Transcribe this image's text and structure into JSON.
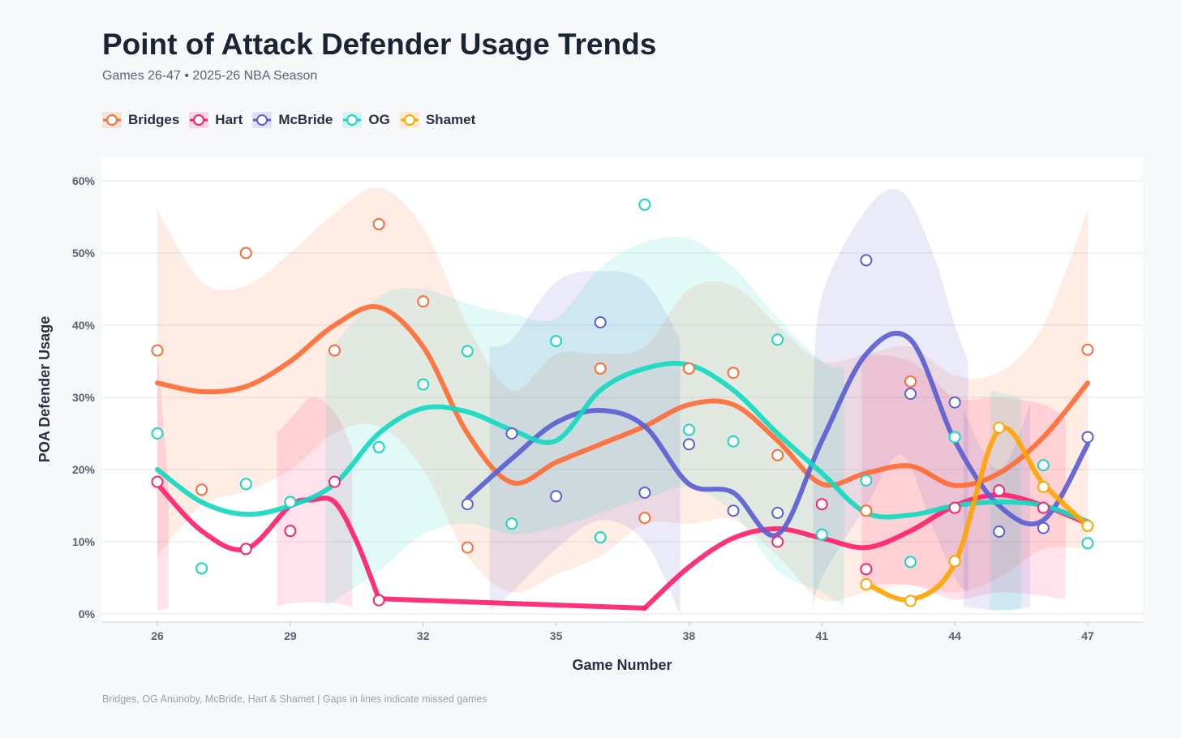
{
  "title": "Point of Attack Defender Usage Trends",
  "subtitle": "Games 26-47 • 2025-26 NBA Season",
  "caption": "Bridges, OG Anunoby, McBride, Hart & Shamet | Gaps in lines indicate missed games",
  "chart_data": {
    "type": "line",
    "title": "Point of Attack Defender Usage Trends",
    "xlabel": "Game Number",
    "ylabel": "POA Defender Usage",
    "xlim": [
      26,
      47
    ],
    "ylim": [
      0,
      60
    ],
    "x_ticks": [
      26,
      29,
      32,
      35,
      38,
      41,
      44,
      47
    ],
    "x_tick_labels": [
      "26",
      "29",
      "32",
      "35",
      "38",
      "41",
      "44",
      "47"
    ],
    "y_ticks": [
      0,
      10,
      20,
      30,
      40,
      50,
      60
    ],
    "y_tick_labels": [
      "0%",
      "10%",
      "20%",
      "30%",
      "40%",
      "50%",
      "60%"
    ],
    "grid": true,
    "legend_position": "top-left",
    "series": [
      {
        "name": "Bridges",
        "color": "#ff6b35",
        "points": [
          [
            26,
            36.5
          ],
          [
            27,
            17.2
          ],
          [
            28,
            50
          ],
          [
            29,
            15.5
          ],
          [
            30,
            36.5
          ],
          [
            31,
            54
          ],
          [
            32,
            43.3
          ],
          [
            33,
            9.2
          ],
          [
            36,
            34
          ],
          [
            37,
            13.3
          ],
          [
            38,
            34
          ],
          [
            39,
            33.4
          ],
          [
            40,
            22
          ],
          [
            42,
            14.3
          ],
          [
            43,
            32.2
          ],
          [
            47,
            36.6
          ]
        ],
        "trend": [
          [
            [
              26,
              32
            ],
            [
              27,
              30.8
            ],
            [
              28,
              31.5
            ],
            [
              29,
              35
            ],
            [
              30,
              40
            ],
            [
              31,
              42.5
            ],
            [
              32,
              37
            ],
            [
              33,
              25
            ],
            [
              34,
              18.2
            ],
            [
              35,
              21
            ],
            [
              36,
              23.5
            ],
            [
              37,
              26
            ],
            [
              38,
              29
            ],
            [
              39,
              29
            ],
            [
              40,
              24
            ],
            [
              41,
              18
            ],
            [
              42,
              19.5
            ],
            [
              43,
              20.5
            ],
            [
              44,
              17.8
            ],
            [
              45,
              19.5
            ],
            [
              46,
              24.5
            ],
            [
              47,
              32
            ]
          ]
        ],
        "band": [
          [
            [
              26,
              8,
              56
            ],
            [
              27,
              15,
              46
            ],
            [
              28,
              17,
              45.5
            ],
            [
              29,
              20,
              50
            ],
            [
              30,
              25,
              55.5
            ],
            [
              31,
              26,
              59
            ],
            [
              32,
              20,
              53.5
            ],
            [
              33,
              8,
              40
            ],
            [
              34,
              3,
              31
            ],
            [
              35,
              5.5,
              36
            ],
            [
              36,
              8,
              36
            ],
            [
              37,
              12.5,
              37
            ],
            [
              38,
              12.5,
              45
            ],
            [
              39,
              13,
              45.5
            ],
            [
              40,
              8,
              40
            ],
            [
              41,
              2,
              35
            ],
            [
              42,
              3,
              36
            ],
            [
              43,
              4,
              37
            ],
            [
              44,
              3,
              33
            ],
            [
              45,
              5,
              33.5
            ],
            [
              46,
              9,
              40
            ],
            [
              47,
              9,
              56
            ]
          ]
        ]
      },
      {
        "name": "Hart",
        "color": "#ff1f6d",
        "points": [
          [
            26,
            18.3
          ],
          [
            28,
            9
          ],
          [
            29,
            11.5
          ],
          [
            30,
            18.3
          ],
          [
            31,
            1.9
          ],
          [
            40,
            10
          ],
          [
            41,
            15.2
          ],
          [
            42,
            6.2
          ],
          [
            44,
            14.7
          ],
          [
            45,
            17.1
          ],
          [
            46,
            14.7
          ]
        ],
        "trend": [
          [
            [
              26,
              18
            ],
            [
              27,
              11.5
            ],
            [
              28,
              9
            ],
            [
              29,
              15
            ],
            [
              29.5,
              15.8
            ],
            [
              30,
              15.5
            ],
            [
              30.5,
              10
            ],
            [
              31,
              2.1
            ]
          ],
          [
            [
              31,
              2.1
            ],
            [
              37,
              0.8
            ]
          ],
          [
            [
              37,
              0.8
            ],
            [
              38,
              6.5
            ],
            [
              39,
              10.5
            ],
            [
              40,
              11.8
            ],
            [
              41,
              10.5
            ],
            [
              42,
              9.2
            ],
            [
              43,
              11.5
            ],
            [
              44,
              15
            ],
            [
              45,
              16.5
            ],
            [
              46,
              15
            ],
            [
              47,
              12.5
            ]
          ]
        ],
        "band": [
          [
            [
              26,
              0.5,
              36
            ],
            [
              26.25,
              0.8,
              18
            ]
          ],
          [
            [
              28.7,
              1,
              25
            ],
            [
              29,
              1.5,
              27
            ],
            [
              29.5,
              1.6,
              30
            ],
            [
              30,
              1.5,
              28
            ],
            [
              30.4,
              1,
              23
            ]
          ],
          [
            [
              41.9,
              4,
              36
            ],
            [
              43,
              4,
              35
            ],
            [
              44,
              2,
              30
            ],
            [
              45,
              3,
              30
            ],
            [
              46,
              2.5,
              29
            ],
            [
              46.5,
              2,
              27
            ]
          ]
        ]
      },
      {
        "name": "McBride",
        "color": "#5b5fd1",
        "points": [
          [
            33,
            15.2
          ],
          [
            34,
            25
          ],
          [
            35,
            16.3
          ],
          [
            36,
            40.4
          ],
          [
            37,
            16.8
          ],
          [
            38,
            23.5
          ],
          [
            39,
            14.3
          ],
          [
            40,
            14
          ],
          [
            42,
            49
          ],
          [
            43,
            30.5
          ],
          [
            44,
            29.3
          ],
          [
            45,
            11.4
          ],
          [
            46,
            11.9
          ],
          [
            47,
            24.5
          ]
        ],
        "trend": [
          [
            [
              33,
              16
            ],
            [
              34,
              21.5
            ],
            [
              35,
              26.5
            ],
            [
              36,
              28.2
            ],
            [
              37,
              26
            ],
            [
              38,
              18
            ],
            [
              39,
              16.8
            ],
            [
              40,
              11
            ],
            [
              41,
              24
            ],
            [
              42,
              36
            ],
            [
              43,
              38
            ],
            [
              44,
              24
            ],
            [
              45,
              15
            ],
            [
              46,
              13
            ],
            [
              47,
              23.5
            ]
          ]
        ],
        "band": [
          [
            [
              33.5,
              0.5,
              37
            ],
            [
              34,
              3,
              38
            ],
            [
              35,
              9,
              46
            ],
            [
              36,
              13,
              47.5
            ],
            [
              37,
              10,
              46
            ],
            [
              37.8,
              0,
              38
            ]
          ],
          [
            [
              40.8,
              0.5,
              30
            ],
            [
              41,
              5,
              44
            ],
            [
              42,
              15,
              56
            ],
            [
              42.8,
              22,
              58.5
            ],
            [
              43.5,
              12,
              50
            ],
            [
              44,
              5,
              40
            ],
            [
              44.3,
              3,
              35
            ]
          ],
          [
            [
              44.2,
              1,
              28
            ],
            [
              45,
              0.5,
              20
            ],
            [
              45.7,
              1,
              29
            ]
          ]
        ]
      },
      {
        "name": "OG",
        "color": "#14d9c0",
        "points": [
          [
            26,
            25
          ],
          [
            27,
            6.3
          ],
          [
            28,
            18
          ],
          [
            29,
            15.5
          ],
          [
            31,
            23.1
          ],
          [
            32,
            31.8
          ],
          [
            33,
            36.4
          ],
          [
            34,
            12.5
          ],
          [
            35,
            37.8
          ],
          [
            36,
            10.6
          ],
          [
            37,
            56.7
          ],
          [
            38,
            25.5
          ],
          [
            39,
            23.9
          ],
          [
            40,
            38
          ],
          [
            41,
            11
          ],
          [
            42,
            18.5
          ],
          [
            43,
            7.2
          ],
          [
            44,
            24.5
          ],
          [
            46,
            20.6
          ],
          [
            47,
            9.8
          ]
        ],
        "trend": [
          [
            [
              26,
              20
            ],
            [
              27,
              15.5
            ],
            [
              28,
              13.8
            ],
            [
              29,
              15
            ],
            [
              30,
              18
            ],
            [
              31,
              25
            ],
            [
              32,
              28.5
            ],
            [
              33,
              28
            ],
            [
              34,
              25.5
            ],
            [
              35,
              24
            ],
            [
              36,
              31
            ],
            [
              37,
              34
            ],
            [
              38,
              34.5
            ],
            [
              39,
              31
            ],
            [
              40,
              25
            ],
            [
              41,
              19.5
            ],
            [
              42,
              14
            ],
            [
              43,
              13.7
            ],
            [
              44,
              15
            ],
            [
              45,
              15.5
            ],
            [
              46,
              15
            ],
            [
              47,
              12.8
            ]
          ]
        ],
        "band": [
          [
            [
              29.8,
              1,
              36
            ],
            [
              31,
              6,
              44
            ],
            [
              32,
              11,
              45
            ],
            [
              33,
              12.5,
              43
            ],
            [
              34,
              11,
              41.5
            ],
            [
              35,
              12,
              41
            ],
            [
              36,
              14,
              48
            ],
            [
              37,
              16,
              51.5
            ],
            [
              38,
              17.5,
              52
            ],
            [
              39,
              14,
              48
            ],
            [
              40,
              6,
              41
            ],
            [
              41,
              3,
              35
            ],
            [
              41.5,
              1,
              34
            ]
          ],
          [
            [
              44.8,
              0.5,
              31
            ],
            [
              45.5,
              0.5,
              30
            ]
          ]
        ]
      },
      {
        "name": "Shamet",
        "color": "#ffa500",
        "points": [
          [
            42,
            4.1
          ],
          [
            43,
            1.8
          ],
          [
            44,
            7.3
          ],
          [
            45,
            25.8
          ],
          [
            46,
            17.6
          ],
          [
            47,
            12.2
          ]
        ],
        "trend": [
          [
            [
              42,
              4.2
            ],
            [
              43,
              2
            ],
            [
              44,
              7
            ],
            [
              45,
              25.5
            ],
            [
              46,
              18
            ],
            [
              47,
              12.2
            ]
          ]
        ],
        "band": []
      }
    ]
  }
}
